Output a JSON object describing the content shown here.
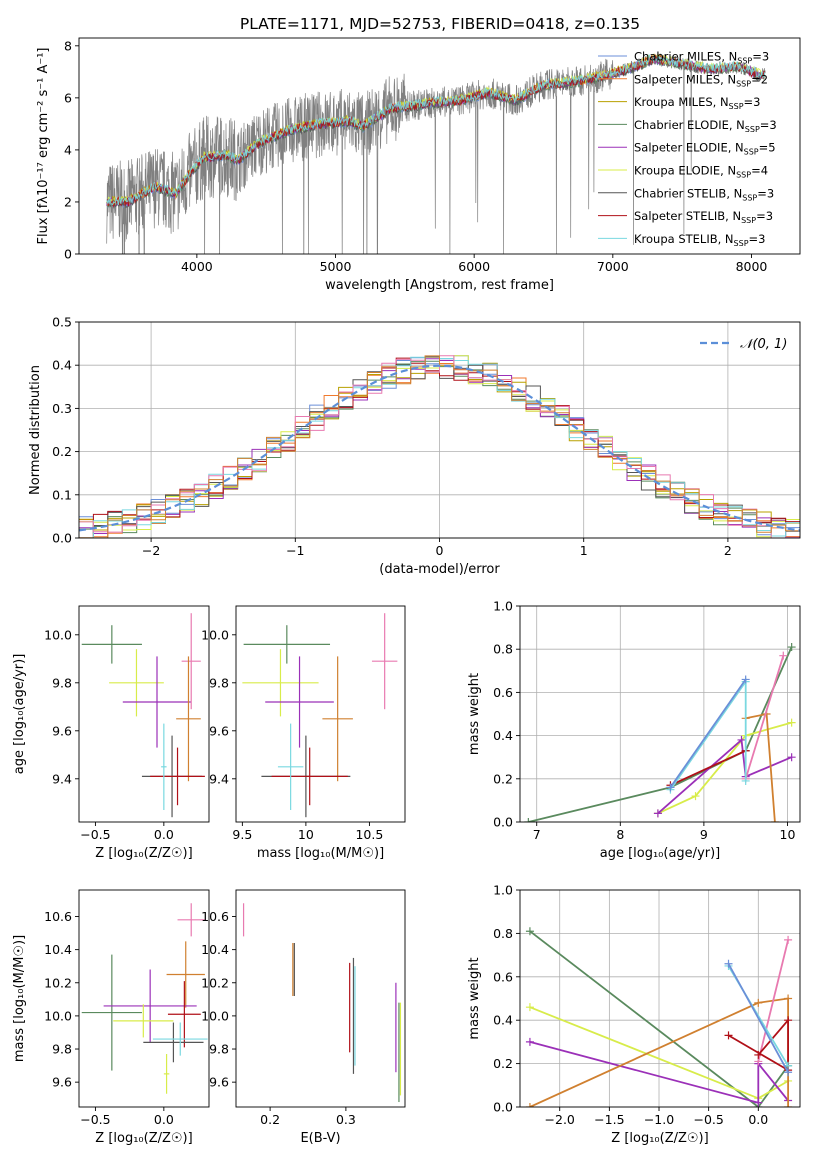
{
  "figure": {
    "title": "PLATE=1171, MJD=52753, FIBERID=0418, z=0.135"
  },
  "colors": {
    "chabrier_miles": "#6b8fd8",
    "salpeter_miles": "#f07a2e",
    "kroupa_miles": "#b8a000",
    "chabrier_elodie": "#5a8a5e",
    "salpeter_elodie": "#9b30b8",
    "kroupa_elodie": "#d8ec4a",
    "chabrier_stelib": "#555555",
    "salpeter_stelib": "#b01018",
    "kroupa_stelib": "#7ad8e0",
    "data": "#808080",
    "normal": "#5b8fd8",
    "extra_pink": "#e87ab0",
    "extra_orange": "#d08030"
  },
  "chart_data": [
    {
      "id": "spectrum",
      "type": "line",
      "xlabel": "wavelength [Angstrom, rest frame]",
      "ylabel": "Flux [fλ10⁻¹⁷ erg cm⁻² s⁻¹ A⁻¹]",
      "xlim": [
        3150,
        8350
      ],
      "ylim": [
        0,
        8.3
      ],
      "xticks": [
        4000,
        5000,
        6000,
        7000,
        8000
      ],
      "yticks": [
        0,
        2,
        4,
        6,
        8
      ],
      "legend_position": "top-right",
      "legend": [
        {
          "label": "Chabrier MILES, N",
          "sub": "SSP",
          "tail": "=3",
          "color": "chabrier_miles"
        },
        {
          "label": "Salpeter MILES, N",
          "sub": "SSP",
          "tail": "=2",
          "color": "salpeter_miles"
        },
        {
          "label": "Kroupa MILES, N",
          "sub": "SSP",
          "tail": "=3",
          "color": "kroupa_miles"
        },
        {
          "label": "Chabrier ELODIE, N",
          "sub": "SSP",
          "tail": "=3",
          "color": "chabrier_elodie"
        },
        {
          "label": "Salpeter ELODIE, N",
          "sub": "SSP",
          "tail": "=5",
          "color": "salpeter_elodie"
        },
        {
          "label": "Kroupa ELODIE, N",
          "sub": "SSP",
          "tail": "=4",
          "color": "kroupa_elodie"
        },
        {
          "label": "Chabrier STELIB, N",
          "sub": "SSP",
          "tail": "=3",
          "color": "chabrier_stelib"
        },
        {
          "label": "Salpeter STELIB, N",
          "sub": "SSP",
          "tail": "=3",
          "color": "salpeter_stelib"
        },
        {
          "label": "Kroupa STELIB, N",
          "sub": "SSP",
          "tail": "=3",
          "color": "kroupa_stelib"
        }
      ],
      "continuum": [
        [
          3350,
          2.0
        ],
        [
          3500,
          2.0
        ],
        [
          3700,
          2.6
        ],
        [
          3850,
          2.3
        ],
        [
          3950,
          3.1
        ],
        [
          4050,
          3.7
        ],
        [
          4200,
          3.8
        ],
        [
          4300,
          3.6
        ],
        [
          4450,
          4.3
        ],
        [
          4700,
          4.8
        ],
        [
          4900,
          5.0
        ],
        [
          5100,
          5.1
        ],
        [
          5200,
          4.9
        ],
        [
          5400,
          5.6
        ],
        [
          5700,
          5.8
        ],
        [
          5900,
          5.9
        ],
        [
          6100,
          6.2
        ],
        [
          6300,
          5.9
        ],
        [
          6500,
          6.5
        ],
        [
          6700,
          6.6
        ],
        [
          6900,
          6.8
        ],
        [
          7100,
          7.1
        ],
        [
          7300,
          7.5
        ],
        [
          7500,
          7.3
        ],
        [
          7700,
          7.1
        ],
        [
          7900,
          7.2
        ],
        [
          8050,
          6.9
        ]
      ]
    },
    {
      "id": "residuals",
      "type": "bar",
      "xlabel": "(data-model)/error",
      "ylabel": "Normed distribution",
      "xlim": [
        -2.5,
        2.5
      ],
      "ylim": [
        0,
        0.5
      ],
      "xticks": [
        -2,
        -1,
        0,
        1,
        2
      ],
      "yticks": [
        0.0,
        0.1,
        0.2,
        0.3,
        0.4,
        0.5
      ],
      "legend": [
        {
          "label": "𝒩(0, 1)",
          "color": "normal"
        }
      ],
      "legend_position": "top-right",
      "bin_width": 0.1,
      "series_count": 9,
      "grid": true
    },
    {
      "id": "age-Z",
      "type": "scatter",
      "xlabel": "Z [log₁₀(Z/Z☉)]",
      "ylabel": "age  [log₁₀(age/yr)]",
      "xlim": [
        -0.62,
        0.33
      ],
      "ylim": [
        9.22,
        10.12
      ],
      "xticks": [
        -0.5,
        0.0,
        0.5
      ],
      "xticklabels": [
        "−0.5",
        "0.0",
        "0.5"
      ],
      "yticks": [
        9.4,
        9.6,
        9.8,
        10.0
      ],
      "points": [
        {
          "x": -0.38,
          "xerr": 0.22,
          "y": 9.96,
          "yerr": 0.08,
          "color": "chabrier_elodie"
        },
        {
          "x": -0.2,
          "xerr": 0.2,
          "y": 9.8,
          "yerr": 0.14,
          "color": "kroupa_elodie"
        },
        {
          "x": -0.05,
          "xerr": 0.25,
          "y": 9.72,
          "yerr": 0.19,
          "color": "salpeter_elodie"
        },
        {
          "x": 0.2,
          "xerr": 0.07,
          "y": 9.89,
          "yerr": 0.2,
          "color": "extra_pink"
        },
        {
          "x": 0.18,
          "xerr": 0.09,
          "y": 9.65,
          "yerr": 0.26,
          "color": "extra_orange"
        },
        {
          "x": 0.06,
          "xerr": 0.22,
          "y": 9.41,
          "yerr": 0.17,
          "color": "chabrier_stelib"
        },
        {
          "x": 0.1,
          "xerr": 0.2,
          "y": 9.41,
          "yerr": 0.12,
          "color": "salpeter_stelib"
        },
        {
          "x": 0.0,
          "xerr": 0.02,
          "y": 9.45,
          "yerr": 0.18,
          "color": "kroupa_stelib"
        }
      ]
    },
    {
      "id": "age-mass",
      "type": "scatter",
      "xlabel": "mass [log₁₀(M/M☉)]",
      "ylabel": "",
      "xlim": [
        9.45,
        10.78
      ],
      "ylim": [
        9.22,
        10.12
      ],
      "xticks": [
        9.5,
        10.0,
        10.5
      ],
      "yticks": [
        9.4,
        9.6,
        9.8,
        10.0
      ],
      "points": [
        {
          "x": 9.85,
          "xerr": 0.34,
          "y": 9.96,
          "yerr": 0.08,
          "color": "chabrier_elodie"
        },
        {
          "x": 9.8,
          "xerr": 0.3,
          "y": 9.8,
          "yerr": 0.14,
          "color": "kroupa_elodie"
        },
        {
          "x": 9.95,
          "xerr": 0.27,
          "y": 9.72,
          "yerr": 0.19,
          "color": "salpeter_elodie"
        },
        {
          "x": 10.62,
          "xerr": 0.1,
          "y": 9.89,
          "yerr": 0.2,
          "color": "extra_pink"
        },
        {
          "x": 10.25,
          "xerr": 0.12,
          "y": 9.65,
          "yerr": 0.26,
          "color": "extra_orange"
        },
        {
          "x": 10.0,
          "xerr": 0.35,
          "y": 9.41,
          "yerr": 0.17,
          "color": "chabrier_stelib"
        },
        {
          "x": 10.03,
          "xerr": 0.3,
          "y": 9.41,
          "yerr": 0.12,
          "color": "salpeter_stelib"
        },
        {
          "x": 9.88,
          "xerr": 0.1,
          "y": 9.45,
          "yerr": 0.18,
          "color": "kroupa_stelib"
        }
      ]
    },
    {
      "id": "massweight-age",
      "type": "line",
      "xlabel": "age  [log₁₀(age/yr)]",
      "ylabel": "mass weight",
      "xlim": [
        6.8,
        10.15
      ],
      "ylim": [
        0.0,
        1.0
      ],
      "xticks": [
        7,
        8,
        9,
        10
      ],
      "yticks": [
        0.0,
        0.2,
        0.4,
        0.6,
        0.8,
        1.0
      ],
      "grid": true,
      "series": [
        {
          "color": "chabrier_elodie",
          "points": [
            [
              6.9,
              0.0
            ],
            [
              8.6,
              0.16
            ],
            [
              9.5,
              0.33
            ],
            [
              10.05,
              0.81
            ]
          ]
        },
        {
          "color": "kroupa_elodie",
          "points": [
            [
              8.45,
              0.04
            ],
            [
              8.9,
              0.12
            ],
            [
              9.5,
              0.4
            ],
            [
              10.05,
              0.46
            ]
          ]
        },
        {
          "color": "salpeter_elodie",
          "points": [
            [
              8.45,
              0.04
            ],
            [
              9.45,
              0.38
            ],
            [
              9.5,
              0.21
            ],
            [
              10.05,
              0.3
            ]
          ]
        },
        {
          "color": "extra_orange",
          "points": [
            [
              9.5,
              0.48
            ],
            [
              9.75,
              0.5
            ],
            [
              9.85,
              0.0
            ]
          ]
        },
        {
          "color": "extra_pink",
          "points": [
            [
              9.5,
              0.2
            ],
            [
              9.95,
              0.77
            ]
          ]
        },
        {
          "color": "salpeter_stelib",
          "points": [
            [
              8.6,
              0.17
            ],
            [
              9.5,
              0.33
            ]
          ]
        },
        {
          "color": "kroupa_stelib",
          "points": [
            [
              8.6,
              0.15
            ],
            [
              9.5,
              0.65
            ],
            [
              9.5,
              0.19
            ]
          ]
        },
        {
          "color": "chabrier_miles",
          "points": [
            [
              8.6,
              0.16
            ],
            [
              9.5,
              0.66
            ]
          ]
        }
      ]
    },
    {
      "id": "mass-Z",
      "type": "scatter",
      "xlabel": "Z [log₁₀(Z/Z☉)]",
      "ylabel": "mass [log₁₀(M/M☉)]",
      "xlim": [
        -0.62,
        0.33
      ],
      "ylim": [
        9.45,
        10.76
      ],
      "xticks": [
        -0.5,
        0.0,
        0.5
      ],
      "xticklabels": [
        "−0.5",
        "0.0",
        "0.5"
      ],
      "yticks": [
        9.6,
        9.8,
        10.0,
        10.2,
        10.4,
        10.6
      ],
      "points": [
        {
          "x": 0.2,
          "xerr": 0.1,
          "y": 10.58,
          "yerr": 0.1,
          "color": "extra_pink"
        },
        {
          "x": 0.16,
          "xerr": 0.14,
          "y": 10.25,
          "yerr": 0.2,
          "color": "extra_orange"
        },
        {
          "x": -0.38,
          "xerr": 0.22,
          "y": 10.02,
          "yerr": 0.35,
          "color": "chabrier_elodie"
        },
        {
          "x": -0.1,
          "xerr": 0.34,
          "y": 10.06,
          "yerr": 0.22,
          "color": "salpeter_elodie"
        },
        {
          "x": -0.15,
          "xerr": 0.22,
          "y": 9.97,
          "yerr": 0.1,
          "color": "kroupa_elodie"
        },
        {
          "x": 0.15,
          "xerr": 0.12,
          "y": 10.01,
          "yerr": 0.2,
          "color": "salpeter_stelib"
        },
        {
          "x": 0.07,
          "xerr": 0.22,
          "y": 9.84,
          "yerr": 0.12,
          "color": "chabrier_stelib"
        },
        {
          "x": 0.12,
          "xerr": 0.2,
          "y": 9.86,
          "yerr": 0.1,
          "color": "kroupa_stelib"
        },
        {
          "x": 0.02,
          "xerr": 0.02,
          "y": 9.65,
          "yerr": 0.12,
          "color": "kroupa_elodie"
        }
      ]
    },
    {
      "id": "mass-ebv",
      "type": "scatter",
      "xlabel": "E(B-V)",
      "ylabel": "",
      "xlim": [
        0.155,
        0.378
      ],
      "ylim": [
        9.45,
        10.76
      ],
      "xticks": [
        0.2,
        0.3
      ],
      "yticks": [
        9.6,
        9.8,
        10.0,
        10.2,
        10.4,
        10.6
      ],
      "points": [
        {
          "x": 0.165,
          "xerr": 0.0,
          "y": 10.58,
          "yerr": 0.1,
          "color": "extra_pink"
        },
        {
          "x": 0.23,
          "xerr": 0.0,
          "y": 10.28,
          "yerr": 0.16,
          "color": "extra_orange"
        },
        {
          "x": 0.232,
          "xerr": 0.0,
          "y": 10.28,
          "yerr": 0.16,
          "color": "chabrier_stelib"
        },
        {
          "x": 0.305,
          "xerr": 0.0,
          "y": 10.05,
          "yerr": 0.27,
          "color": "salpeter_stelib"
        },
        {
          "x": 0.31,
          "xerr": 0.0,
          "y": 10.0,
          "yerr": 0.35,
          "color": "chabrier_stelib"
        },
        {
          "x": 0.312,
          "xerr": 0.0,
          "y": 10.0,
          "yerr": 0.3,
          "color": "kroupa_stelib"
        },
        {
          "x": 0.366,
          "xerr": 0.0,
          "y": 9.93,
          "yerr": 0.27,
          "color": "salpeter_elodie"
        },
        {
          "x": 0.37,
          "xerr": 0.0,
          "y": 9.78,
          "yerr": 0.3,
          "color": "chabrier_elodie"
        },
        {
          "x": 0.372,
          "xerr": 0.0,
          "y": 9.8,
          "yerr": 0.28,
          "color": "kroupa_elodie"
        }
      ]
    },
    {
      "id": "massweight-Z",
      "type": "line",
      "xlabel": "Z [log₁₀(Z/Z☉)]",
      "ylabel": "mass weight",
      "xlim": [
        -2.4,
        0.42
      ],
      "ylim": [
        0.0,
        1.0
      ],
      "xticks": [
        -2.0,
        -1.5,
        -1.0,
        -0.5,
        0.0
      ],
      "xticklabels": [
        "−2.0",
        "−1.5",
        "−1.0",
        "−0.5",
        "0.0"
      ],
      "yticks": [
        0.0,
        0.2,
        0.4,
        0.6,
        0.8,
        1.0
      ],
      "grid": true,
      "series": [
        {
          "color": "chabrier_elodie",
          "points": [
            [
              -2.3,
              0.81
            ],
            [
              0.0,
              0.0
            ],
            [
              0.3,
              0.19
            ]
          ]
        },
        {
          "color": "kroupa_elodie",
          "points": [
            [
              -2.3,
              0.46
            ],
            [
              0.0,
              0.04
            ],
            [
              0.3,
              0.12
            ]
          ]
        },
        {
          "color": "salpeter_elodie",
          "points": [
            [
              -2.3,
              0.3
            ],
            [
              0.0,
              0.02
            ],
            [
              0.0,
              0.2
            ],
            [
              0.3,
              0.03
            ]
          ]
        },
        {
          "color": "extra_orange",
          "points": [
            [
              -2.3,
              0.0
            ],
            [
              0.0,
              0.48
            ],
            [
              0.3,
              0.5
            ],
            [
              0.3,
              0.0
            ]
          ]
        },
        {
          "color": "extra_pink",
          "points": [
            [
              0.0,
              0.21
            ],
            [
              0.3,
              0.77
            ]
          ]
        },
        {
          "color": "salpeter_stelib",
          "points": [
            [
              -0.3,
              0.33
            ],
            [
              0.3,
              0.17
            ],
            [
              0.3,
              0.4
            ],
            [
              0.0,
              0.24
            ]
          ]
        },
        {
          "color": "kroupa_stelib",
          "points": [
            [
              -0.3,
              0.65
            ],
            [
              0.3,
              0.19
            ]
          ]
        },
        {
          "color": "chabrier_miles",
          "points": [
            [
              -0.3,
              0.66
            ],
            [
              0.3,
              0.16
            ]
          ]
        }
      ]
    }
  ]
}
